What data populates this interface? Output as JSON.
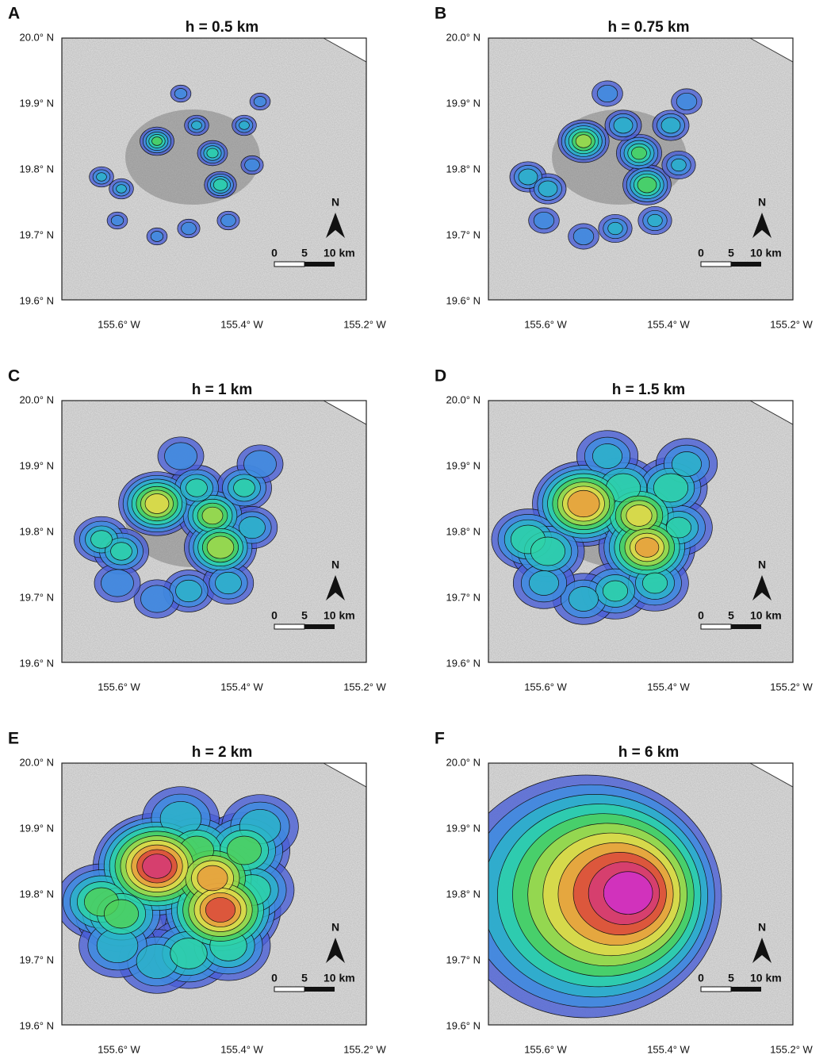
{
  "panels": [
    {
      "letter": "A",
      "title": "h = 0.5 km"
    },
    {
      "letter": "B",
      "title": "h = 0.75 km"
    },
    {
      "letter": "C",
      "title": "h = 1 km"
    },
    {
      "letter": "D",
      "title": "h = 1.5 km"
    },
    {
      "letter": "E",
      "title": "h = 2 km"
    },
    {
      "letter": "F",
      "title": "h = 6 km"
    }
  ],
  "y_labels": [
    "20.0° N",
    "19.9° N",
    "19.8° N",
    "19.7° N",
    "19.6° N"
  ],
  "x_labels": [
    "155.6° W",
    "155.4° W",
    "155.2° W"
  ],
  "scale_bar": {
    "labels": [
      "0",
      "5",
      "10 km"
    ]
  },
  "north": "N"
}
